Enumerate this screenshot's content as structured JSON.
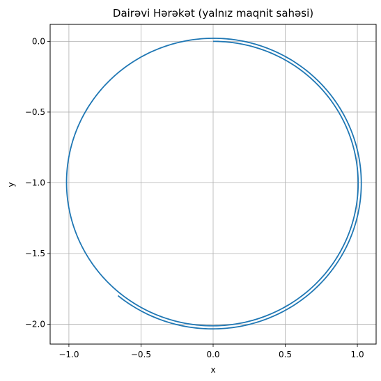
{
  "chart_data": {
    "type": "line",
    "title": "Dairəvi Hərəkət (yalnız maqnit sahəsi)",
    "xlabel": "x",
    "ylabel": "y",
    "xlim": [
      -1.13,
      1.13
    ],
    "ylim": [
      -2.14,
      0.12
    ],
    "grid": true,
    "aspect": "equal",
    "x_ticks": [
      {
        "value": -1.0,
        "label": "−1.0"
      },
      {
        "value": -0.5,
        "label": "−0.5"
      },
      {
        "value": 0.0,
        "label": "0.0"
      },
      {
        "value": 0.5,
        "label": "0.5"
      },
      {
        "value": 1.0,
        "label": "1.0"
      }
    ],
    "y_ticks": [
      {
        "value": 0.0,
        "label": "0.0"
      },
      {
        "value": -0.5,
        "label": "−0.5"
      },
      {
        "value": -1.0,
        "label": "−1.0"
      },
      {
        "value": -1.5,
        "label": "−1.5"
      },
      {
        "value": -2.0,
        "label": "−2.0"
      }
    ],
    "series": [
      {
        "color": "#1f77b4",
        "trajectory": {
          "center": [
            0.0,
            -1.0
          ],
          "start_radius": 1.0,
          "end_radius": 1.035,
          "turns": 1.61
        }
      }
    ]
  }
}
